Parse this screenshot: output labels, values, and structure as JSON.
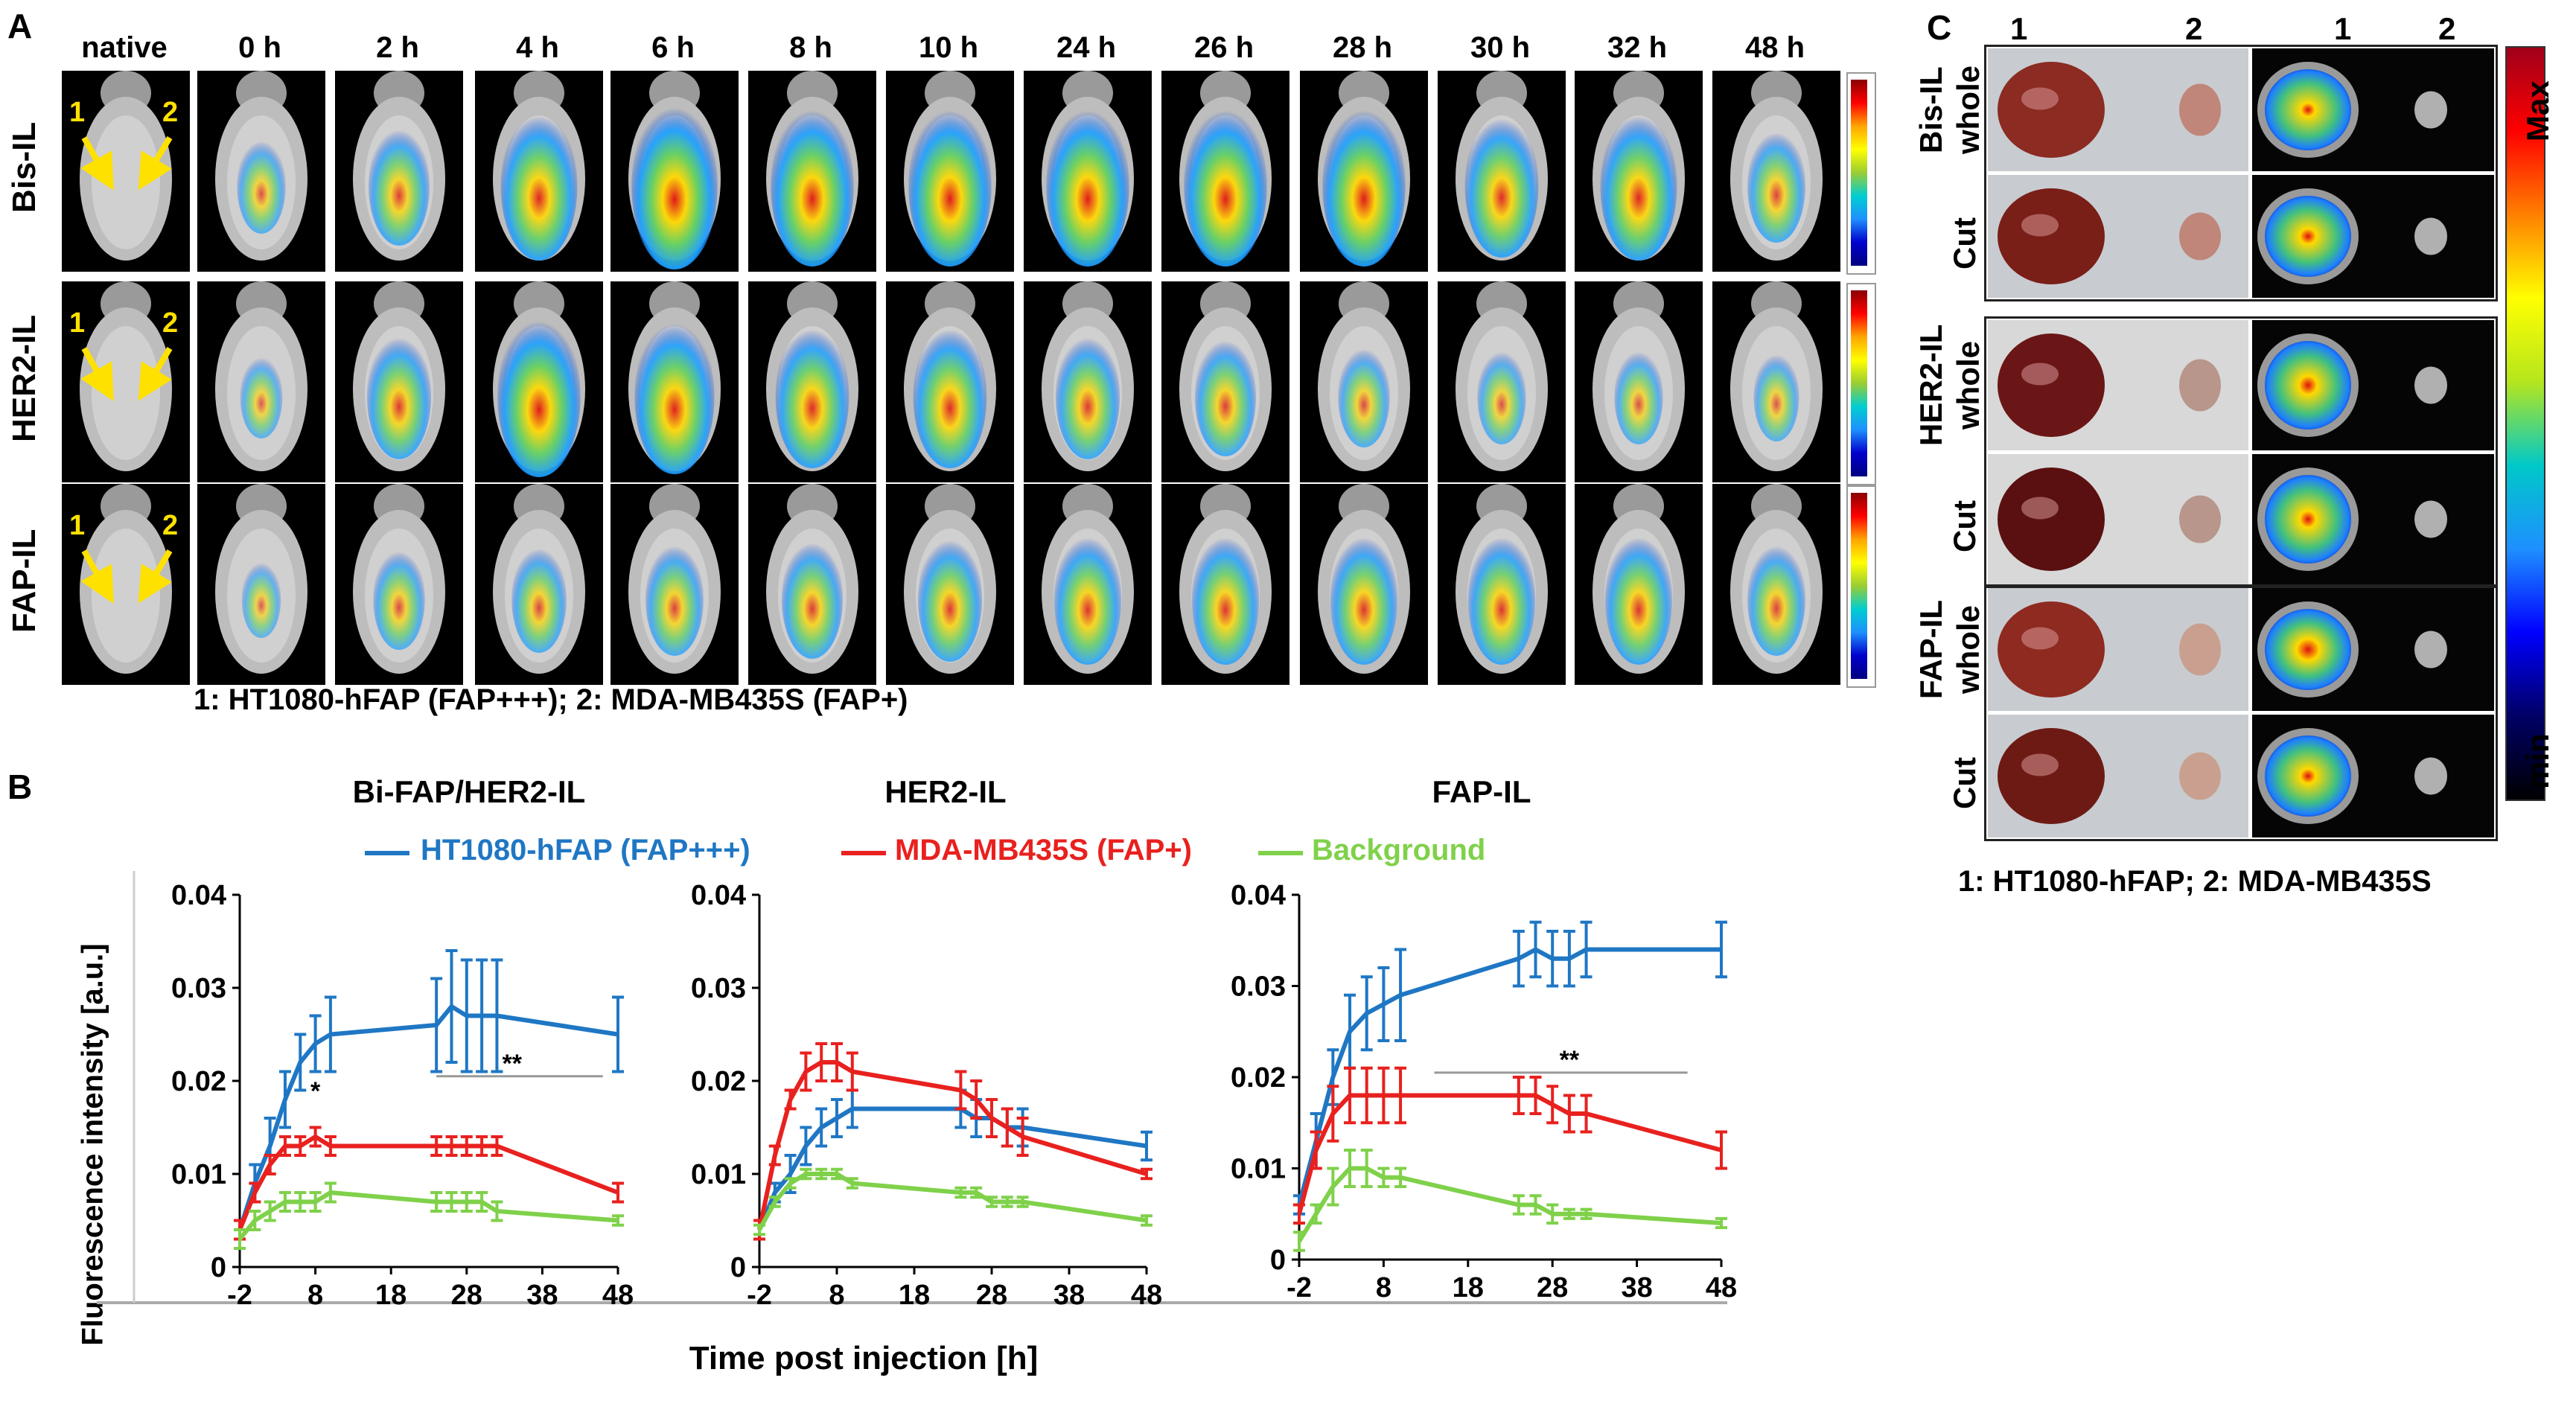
{
  "panelA": {
    "letter": "A",
    "time_labels": [
      "native",
      "0 h",
      "2 h",
      "4 h",
      "6 h",
      "8 h",
      "10 h",
      "24 h",
      "26 h",
      "28 h",
      "30 h",
      "32 h",
      "48 h"
    ],
    "rows": [
      {
        "label": "Bis-IL",
        "intensity": [
          0,
          0.3,
          0.5,
          0.75,
          0.9,
          0.85,
          0.85,
          0.85,
          0.85,
          0.85,
          0.7,
          0.75,
          0.45
        ]
      },
      {
        "label": "HER2-IL",
        "intensity": [
          0,
          0.2,
          0.55,
          0.85,
          0.8,
          0.7,
          0.7,
          0.55,
          0.5,
          0.35,
          0.3,
          0.3,
          0.25
        ]
      },
      {
        "label": "FAP-IL",
        "intensity": [
          0,
          0.15,
          0.35,
          0.4,
          0.45,
          0.5,
          0.55,
          0.6,
          0.6,
          0.6,
          0.6,
          0.6,
          0.45
        ]
      }
    ],
    "arrow_label_1": "1",
    "arrow_label_2": "2",
    "caption": "1: HT1080-hFAP (FAP+++); 2: MDA-MB435S (FAP+)"
  },
  "panelB": {
    "letter": "B",
    "legend": [
      {
        "name": "HT1080-hFAP (FAP+++)",
        "color": "#1f77c4"
      },
      {
        "name": "MDA-MB435S (FAP+)",
        "color": "#e8211f"
      },
      {
        "name": "Background",
        "color": "#7fd14a"
      }
    ],
    "ylabel": "Fluorescence intensity  [a.u.]",
    "xlabel": "Time post injection  [h]",
    "significance_single": "*",
    "significance_double": "**"
  },
  "chart_data": [
    {
      "type": "line",
      "title": "Bi-FAP/HER2-IL",
      "x": [
        -2,
        0,
        2,
        4,
        6,
        8,
        10,
        24,
        26,
        28,
        30,
        32,
        48
      ],
      "xticks": [
        -2,
        8,
        18,
        28,
        38,
        48
      ],
      "ylim": [
        0,
        0.04
      ],
      "yticks": [
        "0",
        "0.01",
        "0.02",
        "0.03",
        "0.04"
      ],
      "series": [
        {
          "name": "HT1080-hFAP (FAP+++)",
          "values": [
            0.004,
            0.009,
            0.013,
            0.018,
            0.022,
            0.024,
            0.025,
            0.026,
            0.028,
            0.027,
            0.027,
            0.027,
            0.025
          ],
          "err": [
            0.001,
            0.002,
            0.003,
            0.003,
            0.003,
            0.003,
            0.004,
            0.005,
            0.006,
            0.006,
            0.006,
            0.006,
            0.004
          ]
        },
        {
          "name": "MDA-MB435S (FAP+)",
          "values": [
            0.004,
            0.008,
            0.011,
            0.013,
            0.013,
            0.014,
            0.013,
            0.013,
            0.013,
            0.013,
            0.013,
            0.013,
            0.008
          ],
          "err": [
            0.001,
            0.001,
            0.001,
            0.001,
            0.001,
            0.001,
            0.001,
            0.001,
            0.001,
            0.001,
            0.001,
            0.001,
            0.001
          ]
        },
        {
          "name": "Background",
          "values": [
            0.003,
            0.005,
            0.006,
            0.007,
            0.007,
            0.007,
            0.008,
            0.007,
            0.007,
            0.007,
            0.007,
            0.006,
            0.005
          ],
          "err": [
            0.001,
            0.001,
            0.001,
            0.001,
            0.001,
            0.001,
            0.001,
            0.001,
            0.001,
            0.001,
            0.001,
            0.001,
            0.0005
          ]
        }
      ],
      "annotations": [
        {
          "text": "*",
          "x": 8
        },
        {
          "text": "**",
          "x": 34
        }
      ],
      "bracket": [
        24,
        46
      ]
    },
    {
      "type": "line",
      "title": "HER2-IL",
      "x": [
        -2,
        0,
        2,
        4,
        6,
        8,
        10,
        24,
        26,
        28,
        30,
        32,
        48
      ],
      "xticks": [
        -2,
        8,
        18,
        28,
        38,
        48
      ],
      "ylim": [
        0,
        0.04
      ],
      "yticks": [
        "0",
        "0.01",
        "0.02",
        "0.03",
        "0.04"
      ],
      "series": [
        {
          "name": "HT1080-hFAP (FAP+++)",
          "values": [
            0.004,
            0.008,
            0.01,
            0.013,
            0.015,
            0.016,
            0.017,
            0.017,
            0.016,
            0.016,
            0.015,
            0.015,
            0.013
          ],
          "err": [
            0.001,
            0.001,
            0.002,
            0.002,
            0.002,
            0.002,
            0.002,
            0.002,
            0.002,
            0.002,
            0.002,
            0.002,
            0.0015
          ]
        },
        {
          "name": "MDA-MB435S (FAP+)",
          "values": [
            0.004,
            0.012,
            0.018,
            0.021,
            0.022,
            0.022,
            0.021,
            0.019,
            0.018,
            0.016,
            0.015,
            0.014,
            0.01
          ],
          "err": [
            0.001,
            0.001,
            0.001,
            0.002,
            0.002,
            0.002,
            0.002,
            0.002,
            0.002,
            0.002,
            0.002,
            0.002,
            0.0005
          ]
        },
        {
          "name": "Background",
          "values": [
            0.004,
            0.007,
            0.009,
            0.01,
            0.01,
            0.01,
            0.009,
            0.008,
            0.008,
            0.007,
            0.007,
            0.007,
            0.005
          ],
          "err": [
            0.0005,
            0.0005,
            0.0005,
            0.0005,
            0.0005,
            0.0005,
            0.0005,
            0.0005,
            0.0005,
            0.0005,
            0.0005,
            0.0005,
            0.0005
          ]
        }
      ]
    },
    {
      "type": "line",
      "title": "FAP-IL",
      "x": [
        -2,
        0,
        2,
        4,
        6,
        8,
        10,
        24,
        26,
        28,
        30,
        32,
        48
      ],
      "xticks": [
        -2,
        8,
        18,
        28,
        38,
        48
      ],
      "ylim": [
        0,
        0.04
      ],
      "yticks": [
        "0",
        "0.01",
        "0.02",
        "0.03",
        "0.04"
      ],
      "series": [
        {
          "name": "HT1080-hFAP (FAP+++)",
          "values": [
            0.006,
            0.013,
            0.02,
            0.025,
            0.027,
            0.028,
            0.029,
            0.033,
            0.034,
            0.033,
            0.033,
            0.034,
            0.034
          ],
          "err": [
            0.001,
            0.003,
            0.003,
            0.004,
            0.004,
            0.004,
            0.005,
            0.003,
            0.003,
            0.003,
            0.003,
            0.003,
            0.003
          ]
        },
        {
          "name": "MDA-MB435S (FAP+)",
          "values": [
            0.005,
            0.012,
            0.016,
            0.018,
            0.018,
            0.018,
            0.018,
            0.018,
            0.018,
            0.017,
            0.016,
            0.016,
            0.012
          ],
          "err": [
            0.001,
            0.002,
            0.003,
            0.003,
            0.003,
            0.003,
            0.003,
            0.002,
            0.002,
            0.002,
            0.002,
            0.002,
            0.002
          ]
        },
        {
          "name": "Background",
          "values": [
            0.002,
            0.005,
            0.008,
            0.01,
            0.01,
            0.009,
            0.009,
            0.006,
            0.006,
            0.005,
            0.005,
            0.005,
            0.004
          ],
          "err": [
            0.001,
            0.001,
            0.002,
            0.002,
            0.002,
            0.001,
            0.001,
            0.001,
            0.001,
            0.001,
            0.0005,
            0.0005,
            0.0005
          ]
        }
      ],
      "annotations": [
        {
          "text": "**",
          "x": 30
        }
      ],
      "bracket": [
        14,
        44
      ]
    }
  ],
  "panelC": {
    "letter": "C",
    "column_labels": [
      "1",
      "2",
      "1",
      "2"
    ],
    "groups": [
      {
        "name": "Bis-IL",
        "rows": [
          "whole",
          "Cut"
        ]
      },
      {
        "name": "HER2-IL",
        "rows": [
          "whole",
          "Cut"
        ]
      },
      {
        "name": "FAP-IL",
        "rows": [
          "whole",
          "Cut"
        ]
      }
    ],
    "scale_max": "Max",
    "scale_min": "min",
    "caption": "1: HT1080-hFAP; 2: MDA-MB435S"
  }
}
